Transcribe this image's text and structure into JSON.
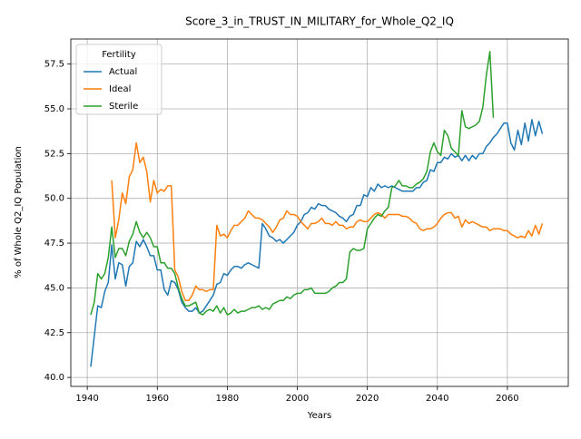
{
  "chart_data": {
    "type": "line",
    "title": "Score_3_in_TRUST_IN_MILITARY_for_Whole_Q2_IQ",
    "xlabel": "Years",
    "ylabel": "% of Whole Q2_IQ Population",
    "legend_title": "Fertility",
    "legend": "upper left",
    "grid": true,
    "xlim": [
      1935.3,
      2077.4
    ],
    "ylim": [
      39.5,
      58.9
    ],
    "xticks": [
      1940,
      1960,
      1980,
      2000,
      2020,
      2040,
      2060
    ],
    "yticks": [
      {
        "value": 40,
        "label": "40.0"
      },
      42.5,
      {
        "value": 45,
        "label": "45.0"
      },
      47.5,
      {
        "value": 50,
        "label": "50.0"
      },
      52.5,
      {
        "value": 55,
        "label": "55.0"
      },
      57.5
    ],
    "x": [
      1941,
      1942,
      1943,
      1944,
      1945,
      1946,
      1947,
      1948,
      1949,
      1950,
      1951,
      1952,
      1953,
      1954,
      1955,
      1956,
      1957,
      1958,
      1959,
      1960,
      1961,
      1962,
      1963,
      1964,
      1965,
      1966,
      1967,
      1968,
      1969,
      1970,
      1971,
      1972,
      1973,
      1974,
      1975,
      1976,
      1977,
      1978,
      1979,
      1980,
      1981,
      1982,
      1983,
      1984,
      1985,
      1986,
      1987,
      1988,
      1989,
      1990,
      1991,
      1992,
      1993,
      1994,
      1995,
      1996,
      1997,
      1998,
      1999,
      2000,
      2001,
      2002,
      2003,
      2004,
      2005,
      2006,
      2007,
      2008,
      2009,
      2010,
      2011,
      2012,
      2013,
      2014,
      2015,
      2016,
      2017,
      2018,
      2019,
      2020,
      2021,
      2022,
      2023,
      2024,
      2025,
      2026,
      2027,
      2028,
      2029,
      2030,
      2031,
      2032,
      2033,
      2034,
      2035,
      2036,
      2037,
      2038,
      2039,
      2040,
      2041,
      2042,
      2043,
      2044,
      2045,
      2046,
      2047,
      2048,
      2049,
      2050,
      2051,
      2052,
      2053,
      2054,
      2055,
      2056,
      2057,
      2058,
      2059,
      2060,
      2061,
      2062,
      2063,
      2064,
      2065,
      2066,
      2067,
      2068,
      2069,
      2070
    ],
    "series": [
      {
        "name": "Actual",
        "color": "#1f77b4",
        "values": [
          40.6,
          42.3,
          44.0,
          43.9,
          44.8,
          45.3,
          47.4,
          45.5,
          46.4,
          46.3,
          45.1,
          46.2,
          46.4,
          47.6,
          47.3,
          47.7,
          47.3,
          46.8,
          46.8,
          46.0,
          46.0,
          44.9,
          44.6,
          45.4,
          45.3,
          44.9,
          44.2,
          43.9,
          43.7,
          43.7,
          43.9,
          43.6,
          43.7,
          44.0,
          44.3,
          44.6,
          45.2,
          45.3,
          45.8,
          45.7,
          46.0,
          46.2,
          46.2,
          46.1,
          46.3,
          46.4,
          46.3,
          46.2,
          46.1,
          48.6,
          48.3,
          47.9,
          47.8,
          47.6,
          47.7,
          47.5,
          47.7,
          47.9,
          48.1,
          48.5,
          48.7,
          49.1,
          49.2,
          49.5,
          49.4,
          49.7,
          49.6,
          49.6,
          49.4,
          49.3,
          49.2,
          49.0,
          48.9,
          48.7,
          49.0,
          49.1,
          49.6,
          49.6,
          50.2,
          50.1,
          50.6,
          50.4,
          50.8,
          50.6,
          50.7,
          50.6,
          50.7,
          50.6,
          50.5,
          50.4,
          50.4,
          50.4,
          50.4,
          50.6,
          50.6,
          50.9,
          51.0,
          51.6,
          51.5,
          52.0,
          52.0,
          52.3,
          52.2,
          52.5,
          52.3,
          52.4,
          52.1,
          52.4,
          52.1,
          52.4,
          52.2,
          52.5,
          52.5,
          52.9,
          53.1,
          53.4,
          53.6,
          53.9,
          54.2,
          54.2,
          53.1,
          52.7,
          53.8,
          53.0,
          54.2,
          53.2,
          54.4,
          53.5,
          54.3,
          53.6
        ]
      },
      {
        "name": "Ideal",
        "color": "#ff7f0e",
        "values": [
          null,
          null,
          null,
          null,
          null,
          null,
          51.0,
          47.8,
          48.8,
          50.3,
          49.7,
          51.2,
          51.6,
          53.1,
          52.0,
          52.3,
          51.5,
          49.8,
          51.0,
          50.3,
          50.5,
          50.4,
          50.7,
          50.7,
          46.0,
          45.6,
          44.8,
          44.3,
          44.3,
          44.6,
          45.1,
          44.9,
          44.9,
          44.8,
          44.9,
          44.9,
          48.5,
          47.9,
          48.0,
          47.8,
          48.2,
          48.5,
          48.5,
          48.7,
          48.9,
          49.3,
          49.1,
          48.9,
          48.9,
          48.8,
          48.6,
          48.4,
          48.1,
          48.4,
          48.8,
          48.9,
          49.3,
          49.1,
          49.1,
          49.0,
          48.7,
          48.5,
          48.3,
          48.6,
          48.6,
          48.7,
          48.9,
          48.6,
          48.6,
          48.5,
          48.7,
          48.5,
          48.5,
          48.3,
          48.4,
          48.4,
          48.7,
          48.8,
          48.7,
          48.7,
          48.9,
          49.1,
          49.2,
          49.1,
          48.9,
          49.1,
          49.1,
          49.1,
          49.1,
          49.0,
          49.0,
          48.9,
          48.7,
          48.6,
          48.3,
          48.2,
          48.3,
          48.3,
          48.4,
          48.6,
          48.9,
          49.1,
          49.2,
          49.2,
          48.9,
          49.0,
          48.4,
          48.8,
          48.6,
          48.7,
          48.6,
          48.5,
          48.4,
          48.4,
          48.2,
          48.3,
          48.3,
          48.3,
          48.2,
          48.2,
          48.0,
          47.9,
          47.8,
          47.9,
          47.8,
          48.2,
          47.9,
          48.5,
          48.0,
          48.6
        ]
      },
      {
        "name": "Sterile",
        "color": "#2ca02c",
        "values": [
          43.5,
          44.2,
          45.8,
          45.5,
          45.8,
          46.7,
          48.4,
          46.7,
          47.2,
          47.2,
          46.8,
          47.6,
          48.0,
          48.7,
          48.1,
          47.8,
          48.1,
          47.8,
          47.3,
          47.3,
          46.4,
          46.4,
          46.1,
          46.1,
          45.8,
          45.0,
          44.4,
          44.0,
          44.0,
          44.1,
          44.2,
          43.6,
          43.5,
          43.7,
          43.8,
          43.7,
          44.0,
          43.6,
          43.9,
          43.5,
          43.6,
          43.8,
          43.6,
          43.7,
          43.7,
          43.8,
          43.9,
          43.9,
          44.0,
          43.8,
          43.9,
          43.8,
          44.1,
          44.2,
          44.3,
          44.3,
          44.5,
          44.4,
          44.6,
          44.7,
          44.7,
          44.9,
          44.9,
          45.0,
          44.7,
          44.7,
          44.7,
          44.7,
          44.8,
          45.0,
          45.1,
          45.3,
          45.3,
          45.5,
          47.0,
          47.2,
          47.1,
          47.1,
          47.2,
          48.3,
          48.6,
          48.9,
          49.1,
          49.0,
          49.3,
          49.5,
          50.6,
          50.7,
          51.0,
          50.7,
          50.7,
          50.6,
          50.6,
          50.8,
          50.9,
          51.1,
          51.5,
          52.6,
          53.1,
          52.6,
          52.4,
          53.8,
          53.5,
          52.8,
          52.6,
          52.4,
          54.9,
          54.0,
          53.9,
          54.0,
          54.1,
          54.3,
          55.1,
          56.9,
          58.2,
          54.5,
          null,
          null,
          null,
          null,
          null,
          null,
          null,
          null,
          null,
          null,
          null,
          null,
          null,
          null
        ]
      }
    ]
  }
}
